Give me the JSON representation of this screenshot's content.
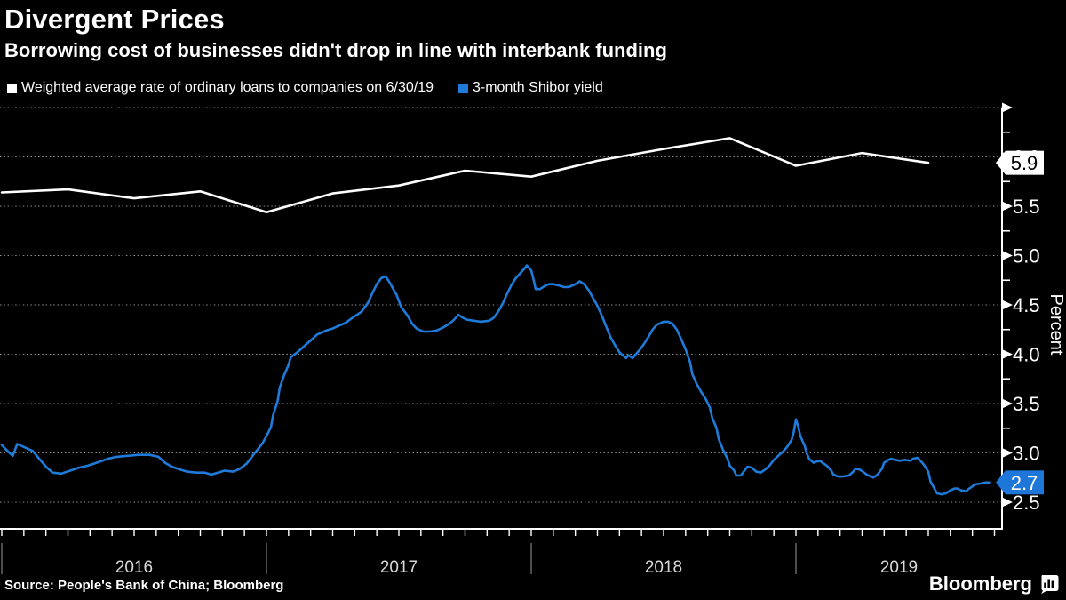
{
  "header": {
    "title": "Divergent Prices",
    "subtitle": "Borrowing cost of businesses didn't drop in line with interbank funding"
  },
  "legend": [
    {
      "label": "Weighted average rate of ordinary loans to companies on 6/30/19",
      "color": "#ffffff"
    },
    {
      "label": "3-month Shibor yield",
      "color": "#1f7bd9"
    }
  ],
  "footer": {
    "source": "Source: People's Bank of China; Bloomberg",
    "brand": "Bloomberg"
  },
  "colors": {
    "background": "#000000",
    "white_series": "#ffffff",
    "blue_series": "#1f7bd9",
    "gridline": "#909090",
    "axis": "#ffffff",
    "year_label": "#d9d9d9",
    "year_separator": "#999999"
  },
  "chart_data": {
    "type": "line",
    "x_unit": "months since January 2016",
    "x_axis": {
      "year_labels": [
        "2016",
        "2017",
        "2018",
        "2019"
      ],
      "year_start_months": [
        0,
        12,
        24,
        36
      ],
      "month_tick_first": 0,
      "month_tick_last": 45
    },
    "y_axis": {
      "label": "Percent",
      "side": "right",
      "gridlines": [
        2.5,
        3.0,
        3.5,
        4.0,
        4.5,
        5.0,
        5.5,
        6.0,
        6.5
      ],
      "labeled_ticks": [
        "2.5",
        "3.0",
        "3.5",
        "4.0",
        "4.5",
        "5.0",
        "5.5",
        "6.0"
      ],
      "labeled_values": [
        2.5,
        3.0,
        3.5,
        4.0,
        4.5,
        5.0,
        5.5,
        6.0
      ],
      "minor_tick_step": 0.25,
      "ylim": [
        2.23,
        6.5
      ]
    },
    "badges": [
      {
        "label": "5.9",
        "value": 5.94,
        "bg": "#ffffff",
        "fg": "#000000"
      },
      {
        "label": "2.7",
        "value": 2.7,
        "bg": "#1d76d8",
        "fg": "#ffffff"
      }
    ],
    "series": [
      {
        "name": "Weighted average rate of ordinary loans to companies on 6/30/19",
        "color": "#ffffff",
        "frequency": "quarterly",
        "points": [
          [
            0,
            5.64
          ],
          [
            3,
            5.67
          ],
          [
            6,
            5.58
          ],
          [
            9,
            5.65
          ],
          [
            12,
            5.44
          ],
          [
            15,
            5.63
          ],
          [
            18,
            5.71
          ],
          [
            21,
            5.86
          ],
          [
            24,
            5.8
          ],
          [
            27,
            5.96
          ],
          [
            30,
            6.08
          ],
          [
            33,
            6.19
          ],
          [
            36,
            5.91
          ],
          [
            39,
            6.04
          ],
          [
            42,
            5.94
          ]
        ]
      },
      {
        "name": "3-month Shibor yield",
        "color": "#1f7bd9",
        "frequency": "daily",
        "points": [
          [
            0,
            3.08
          ],
          [
            0.3,
            3.01
          ],
          [
            0.5,
            2.97
          ],
          [
            0.7,
            3.09
          ],
          [
            1.0,
            3.06
          ],
          [
            1.4,
            3.02
          ],
          [
            1.7,
            2.94
          ],
          [
            2.0,
            2.86
          ],
          [
            2.3,
            2.8
          ],
          [
            2.7,
            2.79
          ],
          [
            3.1,
            2.82
          ],
          [
            3.5,
            2.85
          ],
          [
            3.9,
            2.87
          ],
          [
            4.3,
            2.9
          ],
          [
            4.8,
            2.94
          ],
          [
            5.2,
            2.96
          ],
          [
            5.7,
            2.97
          ],
          [
            6.2,
            2.98
          ],
          [
            6.7,
            2.98
          ],
          [
            7.1,
            2.96
          ],
          [
            7.4,
            2.9
          ],
          [
            7.7,
            2.86
          ],
          [
            8.1,
            2.83
          ],
          [
            8.4,
            2.81
          ],
          [
            8.8,
            2.8
          ],
          [
            9.2,
            2.8
          ],
          [
            9.5,
            2.78
          ],
          [
            9.8,
            2.8
          ],
          [
            10.1,
            2.82
          ],
          [
            10.5,
            2.81
          ],
          [
            10.8,
            2.84
          ],
          [
            11.1,
            2.89
          ],
          [
            11.4,
            2.98
          ],
          [
            11.8,
            3.09
          ],
          [
            12.0,
            3.17
          ],
          [
            12.2,
            3.26
          ],
          [
            12.3,
            3.38
          ],
          [
            12.5,
            3.52
          ],
          [
            12.6,
            3.66
          ],
          [
            12.8,
            3.79
          ],
          [
            13.0,
            3.89
          ],
          [
            13.1,
            3.97
          ],
          [
            13.4,
            4.02
          ],
          [
            13.7,
            4.08
          ],
          [
            14.0,
            4.14
          ],
          [
            14.3,
            4.2
          ],
          [
            14.7,
            4.24
          ],
          [
            15.0,
            4.26
          ],
          [
            15.3,
            4.29
          ],
          [
            15.6,
            4.32
          ],
          [
            15.9,
            4.37
          ],
          [
            16.3,
            4.43
          ],
          [
            16.6,
            4.52
          ],
          [
            16.8,
            4.62
          ],
          [
            17.0,
            4.71
          ],
          [
            17.2,
            4.77
          ],
          [
            17.4,
            4.79
          ],
          [
            17.6,
            4.72
          ],
          [
            17.9,
            4.6
          ],
          [
            18.1,
            4.48
          ],
          [
            18.4,
            4.39
          ],
          [
            18.6,
            4.31
          ],
          [
            18.8,
            4.26
          ],
          [
            19.1,
            4.23
          ],
          [
            19.4,
            4.23
          ],
          [
            19.7,
            4.24
          ],
          [
            20.0,
            4.27
          ],
          [
            20.3,
            4.31
          ],
          [
            20.5,
            4.35
          ],
          [
            20.7,
            4.4
          ],
          [
            20.9,
            4.37
          ],
          [
            21.1,
            4.35
          ],
          [
            21.4,
            4.34
          ],
          [
            21.7,
            4.33
          ],
          [
            22.1,
            4.34
          ],
          [
            22.3,
            4.37
          ],
          [
            22.5,
            4.43
          ],
          [
            22.7,
            4.51
          ],
          [
            22.9,
            4.61
          ],
          [
            23.1,
            4.7
          ],
          [
            23.3,
            4.77
          ],
          [
            23.5,
            4.82
          ],
          [
            23.7,
            4.87
          ],
          [
            23.8,
            4.9
          ],
          [
            24.0,
            4.85
          ],
          [
            24.1,
            4.76
          ],
          [
            24.2,
            4.66
          ],
          [
            24.4,
            4.66
          ],
          [
            24.6,
            4.69
          ],
          [
            24.8,
            4.71
          ],
          [
            25.0,
            4.71
          ],
          [
            25.2,
            4.7
          ],
          [
            25.5,
            4.68
          ],
          [
            25.7,
            4.68
          ],
          [
            26.0,
            4.71
          ],
          [
            26.2,
            4.74
          ],
          [
            26.4,
            4.71
          ],
          [
            26.6,
            4.65
          ],
          [
            26.8,
            4.57
          ],
          [
            27.0,
            4.49
          ],
          [
            27.2,
            4.39
          ],
          [
            27.4,
            4.28
          ],
          [
            27.6,
            4.17
          ],
          [
            27.8,
            4.09
          ],
          [
            28.0,
            4.02
          ],
          [
            28.2,
            3.98
          ],
          [
            28.3,
            3.96
          ],
          [
            28.4,
            3.99
          ],
          [
            28.6,
            3.96
          ],
          [
            28.7,
            3.99
          ],
          [
            28.9,
            4.04
          ],
          [
            29.1,
            4.1
          ],
          [
            29.3,
            4.17
          ],
          [
            29.5,
            4.25
          ],
          [
            29.7,
            4.3
          ],
          [
            30.0,
            4.33
          ],
          [
            30.2,
            4.33
          ],
          [
            30.4,
            4.31
          ],
          [
            30.6,
            4.25
          ],
          [
            30.8,
            4.15
          ],
          [
            31.0,
            4.05
          ],
          [
            31.2,
            3.92
          ],
          [
            31.3,
            3.8
          ],
          [
            31.5,
            3.7
          ],
          [
            31.7,
            3.62
          ],
          [
            31.9,
            3.55
          ],
          [
            32.1,
            3.46
          ],
          [
            32.2,
            3.36
          ],
          [
            32.4,
            3.25
          ],
          [
            32.5,
            3.14
          ],
          [
            32.7,
            3.03
          ],
          [
            32.9,
            2.94
          ],
          [
            33.0,
            2.87
          ],
          [
            33.2,
            2.82
          ],
          [
            33.3,
            2.77
          ],
          [
            33.5,
            2.77
          ],
          [
            33.7,
            2.83
          ],
          [
            33.8,
            2.86
          ],
          [
            34.0,
            2.85
          ],
          [
            34.2,
            2.81
          ],
          [
            34.4,
            2.8
          ],
          [
            34.6,
            2.83
          ],
          [
            34.8,
            2.87
          ],
          [
            35.0,
            2.93
          ],
          [
            35.2,
            2.97
          ],
          [
            35.4,
            3.01
          ],
          [
            35.6,
            3.06
          ],
          [
            35.8,
            3.13
          ],
          [
            35.9,
            3.21
          ],
          [
            36.0,
            3.34
          ],
          [
            36.1,
            3.27
          ],
          [
            36.2,
            3.17
          ],
          [
            36.4,
            3.07
          ],
          [
            36.5,
            2.99
          ],
          [
            36.6,
            2.94
          ],
          [
            36.8,
            2.9
          ],
          [
            36.9,
            2.91
          ],
          [
            37.1,
            2.92
          ],
          [
            37.2,
            2.9
          ],
          [
            37.4,
            2.87
          ],
          [
            37.6,
            2.82
          ],
          [
            37.7,
            2.78
          ],
          [
            37.9,
            2.76
          ],
          [
            38.1,
            2.76
          ],
          [
            38.4,
            2.77
          ],
          [
            38.6,
            2.81
          ],
          [
            38.7,
            2.84
          ],
          [
            38.9,
            2.83
          ],
          [
            39.1,
            2.8
          ],
          [
            39.2,
            2.78
          ],
          [
            39.4,
            2.76
          ],
          [
            39.5,
            2.75
          ],
          [
            39.7,
            2.78
          ],
          [
            39.9,
            2.84
          ],
          [
            40.0,
            2.9
          ],
          [
            40.2,
            2.93
          ],
          [
            40.3,
            2.94
          ],
          [
            40.5,
            2.93
          ],
          [
            40.7,
            2.92
          ],
          [
            40.9,
            2.93
          ],
          [
            41.2,
            2.92
          ],
          [
            41.3,
            2.94
          ],
          [
            41.5,
            2.95
          ],
          [
            41.6,
            2.93
          ],
          [
            41.8,
            2.88
          ],
          [
            42.0,
            2.81
          ],
          [
            42.1,
            2.71
          ],
          [
            42.3,
            2.63
          ],
          [
            42.4,
            2.59
          ],
          [
            42.6,
            2.58
          ],
          [
            42.8,
            2.59
          ],
          [
            43.0,
            2.62
          ],
          [
            43.2,
            2.64
          ],
          [
            43.3,
            2.64
          ],
          [
            43.5,
            2.62
          ],
          [
            43.7,
            2.61
          ],
          [
            43.8,
            2.63
          ],
          [
            44.0,
            2.66
          ],
          [
            44.1,
            2.68
          ],
          [
            44.4,
            2.69
          ],
          [
            44.6,
            2.7
          ],
          [
            44.8,
            2.7
          ]
        ]
      }
    ]
  }
}
